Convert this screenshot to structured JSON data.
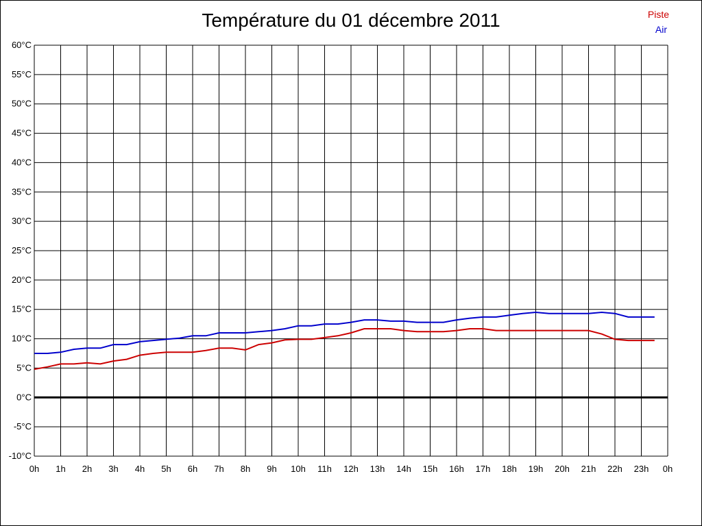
{
  "chart_data": {
    "type": "line",
    "title": "Température du 01 décembre 2011",
    "y_ticks": [
      "60°C",
      "55°C",
      "50°C",
      "45°C",
      "40°C",
      "35°C",
      "30°C",
      "25°C",
      "20°C",
      "15°C",
      "10°C",
      "5°C",
      "0°C",
      "-5°C",
      "-10°C"
    ],
    "x_ticks": [
      "0h",
      "1h",
      "2h",
      "3h",
      "4h",
      "5h",
      "6h",
      "7h",
      "8h",
      "9h",
      "10h",
      "11h",
      "12h",
      "13h",
      "14h",
      "15h",
      "16h",
      "17h",
      "18h",
      "19h",
      "20h",
      "21h",
      "22h",
      "23h",
      "0h"
    ],
    "xlim": [
      0,
      24
    ],
    "ylim": [
      -10,
      60
    ],
    "grid": true,
    "legend_position": "top-right",
    "zero_line": true,
    "x": [
      0,
      0.5,
      1,
      1.5,
      2,
      2.5,
      3,
      3.5,
      4,
      4.5,
      5,
      5.5,
      6,
      6.5,
      7,
      7.5,
      8,
      8.5,
      9,
      9.5,
      10,
      10.5,
      11,
      11.5,
      12,
      12.5,
      13,
      13.5,
      14,
      14.5,
      15,
      15.5,
      16,
      16.5,
      17,
      17.5,
      18,
      18.5,
      19,
      19.5,
      20,
      20.5,
      21,
      21.5,
      22,
      22.5,
      23,
      23.5
    ],
    "series": [
      {
        "name": "Piste",
        "color": "#cc0000",
        "values": [
          4.8,
          5.2,
          5.7,
          5.7,
          5.9,
          5.7,
          6.2,
          6.5,
          7.2,
          7.5,
          7.7,
          7.7,
          7.7,
          8.0,
          8.4,
          8.4,
          8.1,
          9.0,
          9.3,
          9.8,
          9.9,
          9.9,
          10.2,
          10.5,
          11.0,
          11.7,
          11.7,
          11.7,
          11.4,
          11.2,
          11.2,
          11.2,
          11.4,
          11.7,
          11.7,
          11.4,
          11.4,
          11.4,
          11.4,
          11.4,
          11.4,
          11.4,
          11.4,
          10.8,
          9.9,
          9.7,
          9.7,
          9.7
        ]
      },
      {
        "name": "Air",
        "color": "#0000cc",
        "values": [
          7.5,
          7.5,
          7.7,
          8.2,
          8.4,
          8.4,
          9.0,
          9.0,
          9.5,
          9.7,
          9.9,
          10.1,
          10.5,
          10.5,
          11.0,
          11.0,
          11.0,
          11.2,
          11.4,
          11.7,
          12.2,
          12.2,
          12.5,
          12.5,
          12.8,
          13.2,
          13.2,
          13.0,
          13.0,
          12.8,
          12.8,
          12.8,
          13.2,
          13.5,
          13.7,
          13.7,
          14.0,
          14.3,
          14.5,
          14.3,
          14.3,
          14.3,
          14.3,
          14.5,
          14.3,
          13.7,
          13.7,
          13.7
        ]
      }
    ]
  }
}
